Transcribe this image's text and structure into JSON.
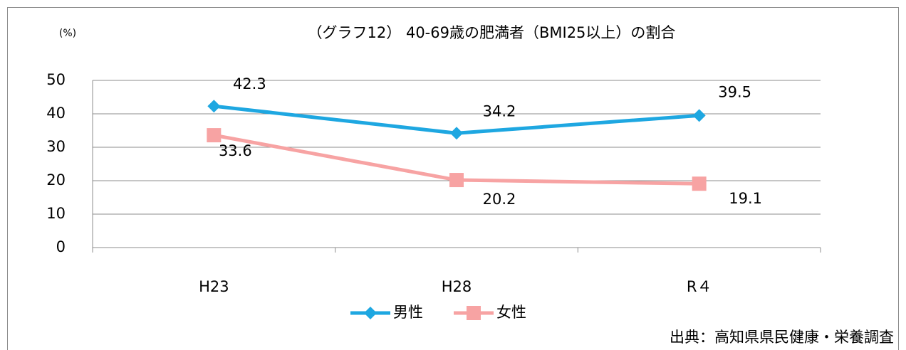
{
  "chart_data": {
    "type": "line",
    "title": "（グラフ12） 40-69歳の肥満者（BMI25以上）の割合",
    "y_label": "(%)",
    "source": "出典：高知県県民健康・栄養調査",
    "categories": [
      "H23",
      "H28",
      "R４"
    ],
    "series": [
      {
        "name": "男性",
        "color": "#1ea7e1",
        "marker": "diamond",
        "values": [
          42.3,
          34.2,
          39.5
        ]
      },
      {
        "name": "女性",
        "color": "#f7a3a3",
        "marker": "square",
        "values": [
          33.6,
          20.2,
          19.1
        ]
      }
    ],
    "ylim": [
      0,
      50
    ],
    "yticks": [
      0,
      10,
      20,
      30,
      40,
      50
    ],
    "grid": true,
    "legend": "bottom"
  }
}
